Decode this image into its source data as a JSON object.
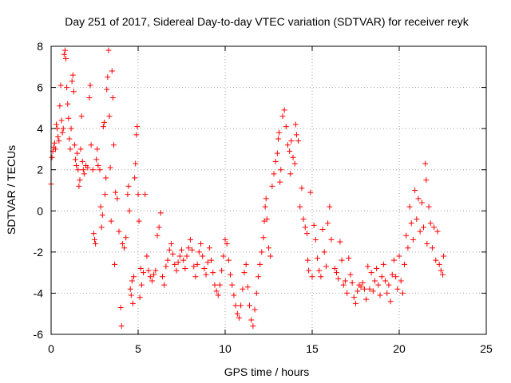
{
  "chart_data": {
    "type": "scatter",
    "title": "Day 251 of 2017, Sidereal Day-to-day VTEC variation (SDTVAR) for receiver reyk",
    "xlabel": "GPS time / hours",
    "ylabel": "SDTVAR / TECUs",
    "xlim": [
      0,
      25
    ],
    "ylim": [
      -6,
      8
    ],
    "x_ticks": [
      0,
      5,
      10,
      15,
      20,
      25
    ],
    "y_ticks": [
      -6,
      -4,
      -2,
      0,
      2,
      4,
      6,
      8
    ],
    "x_tick_labels": [
      "0",
      "5",
      "10",
      "15",
      "20",
      "25"
    ],
    "y_tick_labels": [
      "-6",
      "-4",
      "-2",
      "0",
      "2",
      "4",
      "6",
      "8"
    ],
    "grid": true,
    "marker": "+",
    "marker_color": "#ff0000",
    "series": [
      {
        "name": "SDTVAR",
        "points": [
          [
            0.0,
            1.3
          ],
          [
            0.05,
            2.6
          ],
          [
            0.1,
            2.9
          ],
          [
            0.15,
            3.1
          ],
          [
            0.2,
            3.3
          ],
          [
            0.25,
            3.0
          ],
          [
            0.3,
            4.2
          ],
          [
            0.35,
            4.0
          ],
          [
            0.4,
            3.6
          ],
          [
            0.45,
            3.4
          ],
          [
            0.5,
            5.1
          ],
          [
            0.55,
            6.1
          ],
          [
            0.6,
            4.4
          ],
          [
            0.65,
            3.8
          ],
          [
            0.7,
            4.0
          ],
          [
            0.75,
            7.6
          ],
          [
            0.8,
            7.8
          ],
          [
            0.85,
            7.4
          ],
          [
            0.9,
            6.0
          ],
          [
            0.95,
            5.2
          ],
          [
            1.0,
            4.5
          ],
          [
            1.05,
            3.5
          ],
          [
            1.1,
            3.0
          ],
          [
            1.15,
            4.0
          ],
          [
            1.2,
            6.3
          ],
          [
            1.25,
            6.6
          ],
          [
            1.3,
            5.8
          ],
          [
            1.35,
            3.2
          ],
          [
            1.4,
            2.5
          ],
          [
            1.45,
            2.2
          ],
          [
            1.5,
            2.8
          ],
          [
            1.55,
            2.0
          ],
          [
            1.6,
            1.2
          ],
          [
            1.65,
            1.5
          ],
          [
            1.7,
            3.0
          ],
          [
            1.75,
            4.6
          ],
          [
            1.8,
            2.4
          ],
          [
            1.85,
            2.0
          ],
          [
            1.9,
            1.8
          ],
          [
            2.0,
            2.2
          ],
          [
            2.1,
            2.1
          ],
          [
            2.2,
            5.5
          ],
          [
            2.25,
            6.1
          ],
          [
            2.3,
            3.2
          ],
          [
            2.4,
            2.0
          ],
          [
            2.45,
            -1.1
          ],
          [
            2.5,
            -1.4
          ],
          [
            2.55,
            -1.6
          ],
          [
            2.6,
            2.5
          ],
          [
            2.65,
            3.0
          ],
          [
            2.7,
            2.2
          ],
          [
            2.8,
            2.0
          ],
          [
            2.85,
            0.2
          ],
          [
            2.9,
            -0.8
          ],
          [
            2.95,
            -0.2
          ],
          [
            3.0,
            4.1
          ],
          [
            3.05,
            4.3
          ],
          [
            3.1,
            0.8
          ],
          [
            3.15,
            1.6
          ],
          [
            3.2,
            5.9
          ],
          [
            3.25,
            6.5
          ],
          [
            3.3,
            7.8
          ],
          [
            3.35,
            4.6
          ],
          [
            3.4,
            2.1
          ],
          [
            3.45,
            -0.5
          ],
          [
            3.5,
            6.8
          ],
          [
            3.55,
            5.5
          ],
          [
            3.6,
            3.2
          ],
          [
            3.65,
            -2.6
          ],
          [
            3.7,
            0.9
          ],
          [
            3.8,
            0.6
          ],
          [
            3.9,
            -1.0
          ],
          [
            4.0,
            -4.7
          ],
          [
            4.05,
            -5.6
          ],
          [
            4.1,
            -1.6
          ],
          [
            4.2,
            -1.8
          ],
          [
            4.3,
            -1.3
          ],
          [
            4.4,
            0.8
          ],
          [
            4.45,
            1.2
          ],
          [
            4.5,
            0.0
          ],
          [
            4.55,
            -3.8
          ],
          [
            4.6,
            -4.1
          ],
          [
            4.65,
            -3.4
          ],
          [
            4.7,
            -4.5
          ],
          [
            4.75,
            -3.2
          ],
          [
            4.8,
            1.6
          ],
          [
            4.85,
            2.3
          ],
          [
            4.9,
            3.7
          ],
          [
            4.95,
            4.1
          ],
          [
            5.0,
            0.8
          ],
          [
            5.05,
            -0.5
          ],
          [
            5.1,
            -4.2
          ],
          [
            5.15,
            -2.8
          ],
          [
            5.2,
            -3.6
          ],
          [
            5.3,
            -3.0
          ],
          [
            5.4,
            0.8
          ],
          [
            5.5,
            -2.2
          ],
          [
            5.6,
            -2.9
          ],
          [
            5.7,
            -3.2
          ],
          [
            5.8,
            -3.4
          ],
          [
            5.9,
            -3.1
          ],
          [
            6.0,
            -2.9
          ],
          [
            6.1,
            -1.2
          ],
          [
            6.2,
            -0.8
          ],
          [
            6.3,
            -0.1
          ],
          [
            6.4,
            -3.2
          ],
          [
            6.5,
            -3.6
          ],
          [
            6.6,
            -2.7
          ],
          [
            6.7,
            -2.4
          ],
          [
            6.8,
            -1.9
          ],
          [
            6.9,
            -1.6
          ],
          [
            7.0,
            -2.1
          ],
          [
            7.1,
            -2.6
          ],
          [
            7.2,
            -2.9
          ],
          [
            7.3,
            -2.5
          ],
          [
            7.4,
            -2.2
          ],
          [
            7.5,
            -1.9
          ],
          [
            7.6,
            -2.4
          ],
          [
            7.7,
            -2.8
          ],
          [
            7.8,
            -2.2
          ],
          [
            7.9,
            -1.8
          ],
          [
            8.0,
            -1.4
          ],
          [
            8.1,
            -1.9
          ],
          [
            8.2,
            -2.7
          ],
          [
            8.3,
            -3.2
          ],
          [
            8.4,
            -2.6
          ],
          [
            8.5,
            -2.0
          ],
          [
            8.6,
            -1.6
          ],
          [
            8.7,
            -2.2
          ],
          [
            8.8,
            -2.8
          ],
          [
            8.9,
            -3.1
          ],
          [
            9.0,
            -2.5
          ],
          [
            9.1,
            -1.8
          ],
          [
            9.2,
            -2.4
          ],
          [
            9.3,
            -3.0
          ],
          [
            9.4,
            -3.6
          ],
          [
            9.5,
            -3.9
          ],
          [
            9.6,
            -4.1
          ],
          [
            9.7,
            -3.6
          ],
          [
            9.8,
            -2.9
          ],
          [
            9.9,
            -2.2
          ],
          [
            10.0,
            -1.4
          ],
          [
            10.1,
            -1.6
          ],
          [
            10.2,
            -2.4
          ],
          [
            10.3,
            -3.1
          ],
          [
            10.4,
            -3.6
          ],
          [
            10.5,
            -4.1
          ],
          [
            10.6,
            -4.6
          ],
          [
            10.7,
            -5.0
          ],
          [
            10.8,
            -5.2
          ],
          [
            10.9,
            -4.6
          ],
          [
            11.0,
            -3.8
          ],
          [
            11.1,
            -3.0
          ],
          [
            11.2,
            -2.6
          ],
          [
            11.3,
            -3.7
          ],
          [
            11.4,
            -4.6
          ],
          [
            11.5,
            -5.3
          ],
          [
            11.6,
            -5.6
          ],
          [
            11.7,
            -4.8
          ],
          [
            11.8,
            -4.0
          ],
          [
            11.9,
            -3.2
          ],
          [
            12.0,
            -2.6
          ],
          [
            12.1,
            -2.0
          ],
          [
            12.2,
            -1.3
          ],
          [
            12.25,
            -0.5
          ],
          [
            12.3,
            0.2
          ],
          [
            12.35,
            0.6
          ],
          [
            12.4,
            -0.4
          ],
          [
            12.5,
            -1.8
          ],
          [
            12.6,
            -2.2
          ],
          [
            12.7,
            1.2
          ],
          [
            12.8,
            1.8
          ],
          [
            12.9,
            2.4
          ],
          [
            13.0,
            2.8
          ],
          [
            13.05,
            3.5
          ],
          [
            13.1,
            3.8
          ],
          [
            13.15,
            1.4
          ],
          [
            13.2,
            2.0
          ],
          [
            13.3,
            4.6
          ],
          [
            13.4,
            4.9
          ],
          [
            13.5,
            4.1
          ],
          [
            13.6,
            3.2
          ],
          [
            13.7,
            2.9
          ],
          [
            13.75,
            1.8
          ],
          [
            13.8,
            3.4
          ],
          [
            13.9,
            2.6
          ],
          [
            14.0,
            2.3
          ],
          [
            14.05,
            4.2
          ],
          [
            14.1,
            3.7
          ],
          [
            14.2,
            3.4
          ],
          [
            14.3,
            0.2
          ],
          [
            14.4,
            1.1
          ],
          [
            14.5,
            -0.4
          ],
          [
            14.6,
            -0.8
          ],
          [
            14.7,
            -1.1
          ],
          [
            14.75,
            -2.4
          ],
          [
            14.8,
            -2.9
          ],
          [
            14.9,
            0.9
          ],
          [
            15.0,
            -3.2
          ],
          [
            15.1,
            -0.7
          ],
          [
            15.2,
            -1.4
          ],
          [
            15.3,
            -2.3
          ],
          [
            15.4,
            -2.9
          ],
          [
            15.5,
            -3.2
          ],
          [
            15.6,
            -0.9
          ],
          [
            15.7,
            -2.0
          ],
          [
            15.8,
            -2.7
          ],
          [
            15.9,
            -0.6
          ],
          [
            16.0,
            0.2
          ],
          [
            16.1,
            -1.4
          ],
          [
            16.3,
            -2.8
          ],
          [
            16.4,
            -3.0
          ],
          [
            16.5,
            -3.3
          ],
          [
            16.6,
            -1.5
          ],
          [
            16.7,
            -2.4
          ],
          [
            16.8,
            -3.6
          ],
          [
            16.9,
            -3.4
          ],
          [
            17.0,
            -4.0
          ],
          [
            17.1,
            -2.3
          ],
          [
            17.2,
            -3.1
          ],
          [
            17.3,
            -3.5
          ],
          [
            17.4,
            -4.2
          ],
          [
            17.5,
            -4.5
          ],
          [
            17.6,
            -3.9
          ],
          [
            17.7,
            -3.6
          ],
          [
            17.8,
            -3.7
          ],
          [
            17.9,
            -3.5
          ],
          [
            18.0,
            -3.8
          ],
          [
            18.1,
            -4.3
          ],
          [
            18.2,
            -2.7
          ],
          [
            18.3,
            -3.8
          ],
          [
            18.4,
            -3.0
          ],
          [
            18.5,
            -3.9
          ],
          [
            18.6,
            -3.4
          ],
          [
            18.7,
            -2.8
          ],
          [
            18.8,
            -3.6
          ],
          [
            18.9,
            -4.1
          ],
          [
            19.0,
            -3.2
          ],
          [
            19.1,
            -2.6
          ],
          [
            19.2,
            -3.4
          ],
          [
            19.3,
            -4.0
          ],
          [
            19.4,
            -3.6
          ],
          [
            19.5,
            -4.4
          ],
          [
            19.6,
            -3.1
          ],
          [
            19.7,
            -2.4
          ],
          [
            19.8,
            -3.2
          ],
          [
            19.9,
            -3.8
          ],
          [
            20.0,
            -2.2
          ],
          [
            20.1,
            -3.4
          ],
          [
            20.2,
            -4.0
          ],
          [
            20.3,
            -2.6
          ],
          [
            20.4,
            -1.2
          ],
          [
            20.5,
            -1.8
          ],
          [
            20.6,
            0.2
          ],
          [
            20.7,
            -0.6
          ],
          [
            20.8,
            -1.4
          ],
          [
            20.9,
            1.0
          ],
          [
            21.0,
            -0.4
          ],
          [
            21.1,
            0.6
          ],
          [
            21.2,
            -1.0
          ],
          [
            21.3,
            0.4
          ],
          [
            21.4,
            -0.8
          ],
          [
            21.5,
            2.3
          ],
          [
            21.55,
            1.5
          ],
          [
            21.6,
            -1.6
          ],
          [
            21.7,
            0.2
          ],
          [
            21.8,
            -0.6
          ],
          [
            21.9,
            -1.8
          ],
          [
            22.0,
            -0.8
          ],
          [
            22.1,
            -2.4
          ],
          [
            22.2,
            -1.0
          ],
          [
            22.3,
            -2.6
          ],
          [
            22.4,
            -2.9
          ],
          [
            22.5,
            -3.1
          ],
          [
            22.55,
            -2.2
          ]
        ]
      }
    ]
  }
}
